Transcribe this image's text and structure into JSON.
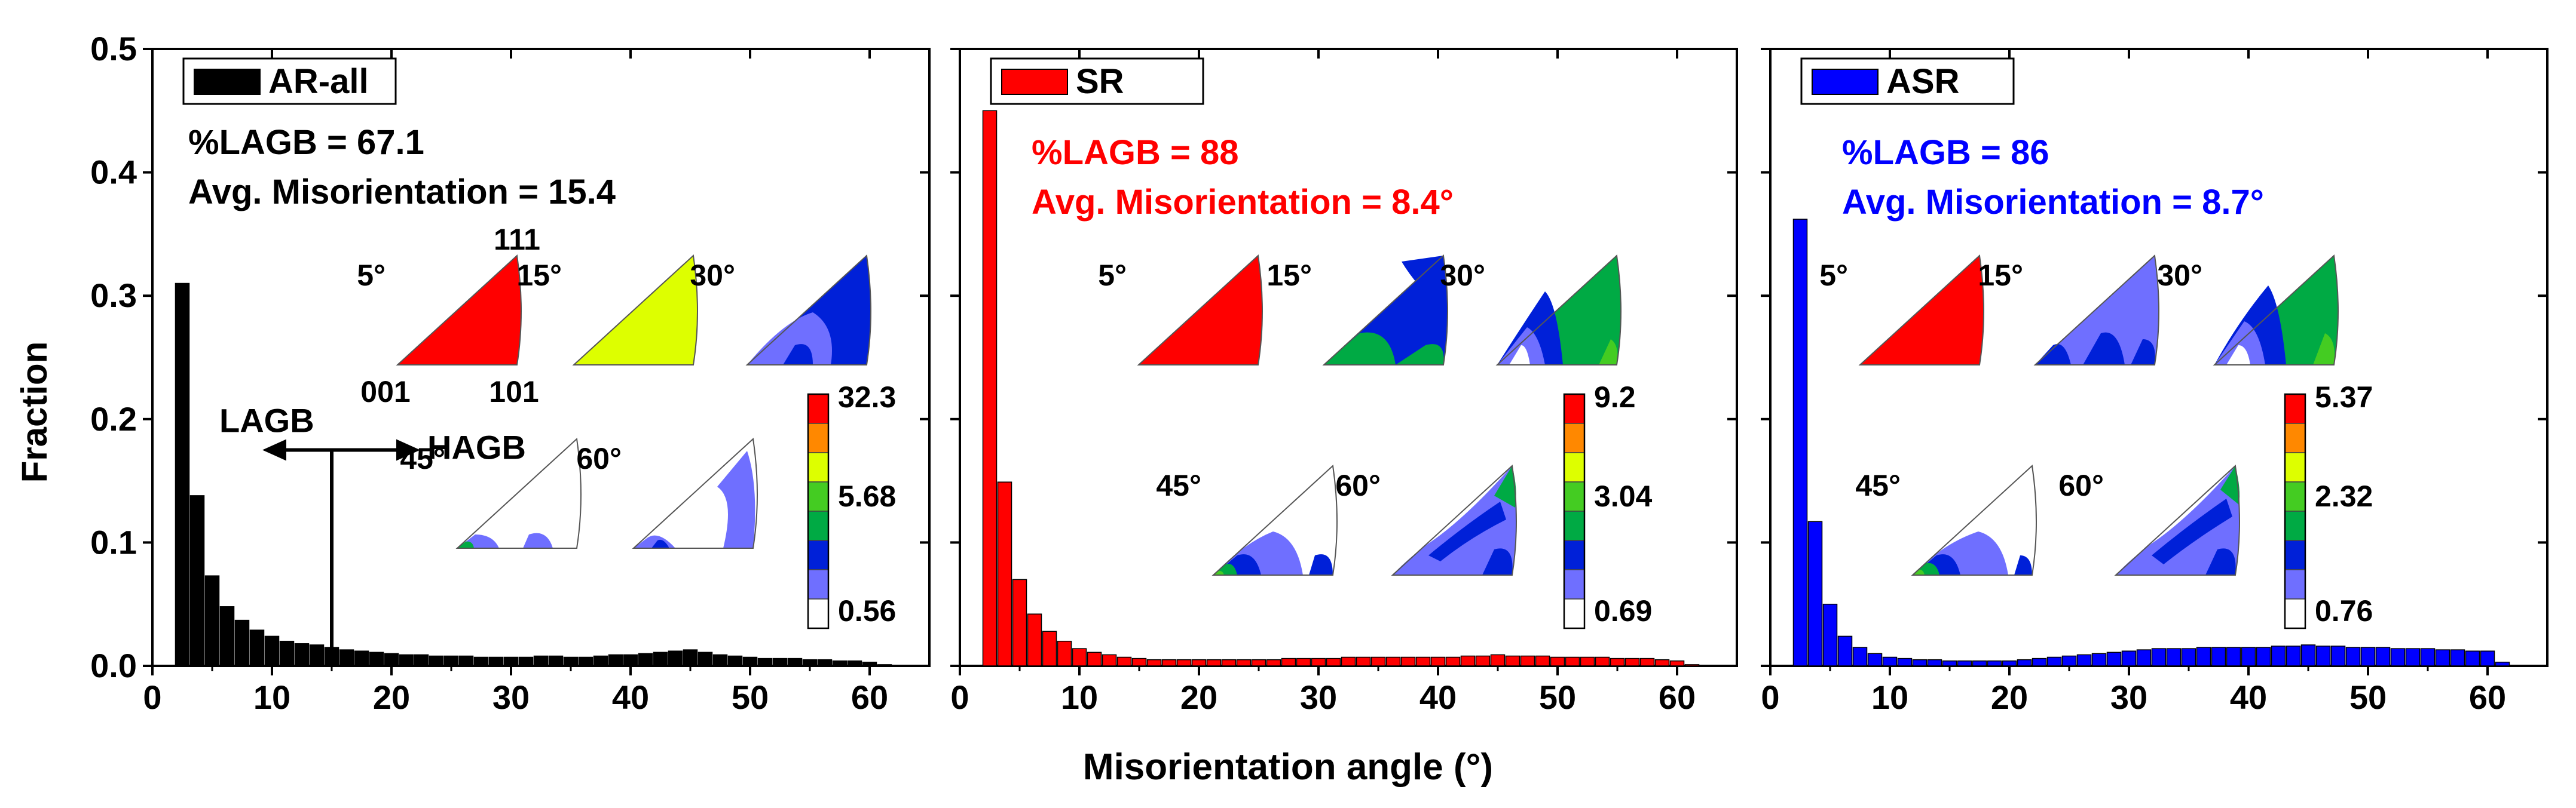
{
  "figure": {
    "ylabel": "Fraction",
    "xlabel": "Misorientation angle (°)",
    "lagb_label": "LAGB",
    "hagb_label": "HAGB"
  },
  "colors": {
    "ar": "#000000",
    "sr": "#ff0000",
    "asr": "#0000ff",
    "ipf_scale": [
      "#ffffff",
      "#6f6fff",
      "#0020d8",
      "#00aa44",
      "#44cc22",
      "#ddff00",
      "#ff8800",
      "#ff0000"
    ]
  },
  "chart_data": [
    {
      "type": "bar",
      "panel": "AR",
      "legend": "AR-all",
      "title": "",
      "xlabel": "",
      "ylabel": "Fraction",
      "xlim": [
        0,
        65
      ],
      "ylim": [
        0,
        0.5
      ],
      "xticks": [
        0,
        10,
        20,
        30,
        40,
        50,
        60
      ],
      "yticks": [
        0.0,
        0.1,
        0.2,
        0.3,
        0.4,
        0.5
      ],
      "ytick_labels": [
        "0.0",
        "0.1",
        "0.2",
        "0.3",
        "0.4",
        "0.5"
      ],
      "bin_width": 1.25,
      "x": [
        2.5,
        3.75,
        5,
        6.25,
        7.5,
        8.75,
        10,
        11.25,
        12.5,
        13.75,
        15,
        16.25,
        17.5,
        18.75,
        20,
        21.25,
        22.5,
        23.75,
        25,
        26.25,
        27.5,
        28.75,
        30,
        31.25,
        32.5,
        33.75,
        35,
        36.25,
        37.5,
        38.75,
        40,
        41.25,
        42.5,
        43.75,
        45,
        46.25,
        47.5,
        48.75,
        50,
        51.25,
        52.5,
        53.75,
        55,
        56.25,
        57.5,
        58.75,
        60,
        61.25
      ],
      "values": [
        0.31,
        0.138,
        0.073,
        0.048,
        0.037,
        0.029,
        0.024,
        0.02,
        0.018,
        0.017,
        0.015,
        0.013,
        0.012,
        0.011,
        0.01,
        0.009,
        0.009,
        0.008,
        0.008,
        0.008,
        0.007,
        0.007,
        0.007,
        0.007,
        0.008,
        0.008,
        0.007,
        0.007,
        0.008,
        0.009,
        0.009,
        0.01,
        0.011,
        0.012,
        0.013,
        0.011,
        0.009,
        0.008,
        0.007,
        0.006,
        0.006,
        0.006,
        0.005,
        0.005,
        0.004,
        0.004,
        0.003,
        0.001
      ],
      "annotations": [
        "%LAGB = 67.1",
        "Avg. Misorientation = 15.4"
      ],
      "ipf_angles": [
        "5°",
        "15°",
        "30°",
        "45°",
        "60°"
      ],
      "ipf_corners": [
        "111",
        "001",
        "101"
      ],
      "scale_labels": [
        "32.3",
        "5.68",
        "0.56"
      ],
      "divider_angle": 15
    },
    {
      "type": "bar",
      "panel": "SR",
      "legend": "SR",
      "title": "",
      "xlabel": "",
      "ylabel": "",
      "xlim": [
        0,
        65
      ],
      "ylim": [
        0,
        0.5
      ],
      "xticks": [
        0,
        10,
        20,
        30,
        40,
        50,
        60
      ],
      "bin_width": 1.25,
      "x": [
        2.5,
        3.75,
        5,
        6.25,
        7.5,
        8.75,
        10,
        11.25,
        12.5,
        13.75,
        15,
        16.25,
        17.5,
        18.75,
        20,
        21.25,
        22.5,
        23.75,
        25,
        26.25,
        27.5,
        28.75,
        30,
        31.25,
        32.5,
        33.75,
        35,
        36.25,
        37.5,
        38.75,
        40,
        41.25,
        42.5,
        43.75,
        45,
        46.25,
        47.5,
        48.75,
        50,
        51.25,
        52.5,
        53.75,
        55,
        56.25,
        57.5,
        58.75,
        60,
        61.25
      ],
      "values": [
        0.45,
        0.149,
        0.07,
        0.042,
        0.028,
        0.02,
        0.014,
        0.011,
        0.009,
        0.007,
        0.006,
        0.005,
        0.005,
        0.005,
        0.005,
        0.005,
        0.005,
        0.005,
        0.005,
        0.005,
        0.006,
        0.006,
        0.006,
        0.006,
        0.007,
        0.007,
        0.007,
        0.007,
        0.007,
        0.007,
        0.007,
        0.007,
        0.008,
        0.008,
        0.009,
        0.008,
        0.008,
        0.008,
        0.007,
        0.007,
        0.007,
        0.007,
        0.006,
        0.006,
        0.006,
        0.005,
        0.004,
        0.001
      ],
      "annotations": [
        "%LAGB = 88",
        "Avg. Misorientation = 8.4°"
      ],
      "ipf_angles": [
        "5°",
        "15°",
        "30°",
        "45°",
        "60°"
      ],
      "scale_labels": [
        "9.2",
        "3.04",
        "0.69"
      ]
    },
    {
      "type": "bar",
      "panel": "ASR",
      "legend": "ASR",
      "title": "",
      "xlabel": "",
      "ylabel": "",
      "xlim": [
        0,
        65
      ],
      "ylim": [
        0,
        0.5
      ],
      "xticks": [
        0,
        10,
        20,
        30,
        40,
        50,
        60
      ],
      "bin_width": 1.25,
      "x": [
        2.5,
        3.75,
        5,
        6.25,
        7.5,
        8.75,
        10,
        11.25,
        12.5,
        13.75,
        15,
        16.25,
        17.5,
        18.75,
        20,
        21.25,
        22.5,
        23.75,
        25,
        26.25,
        27.5,
        28.75,
        30,
        31.25,
        32.5,
        33.75,
        35,
        36.25,
        37.5,
        38.75,
        40,
        41.25,
        42.5,
        43.75,
        45,
        46.25,
        47.5,
        48.75,
        50,
        51.25,
        52.5,
        53.75,
        55,
        56.25,
        57.5,
        58.75,
        60,
        61.25
      ],
      "values": [
        0.362,
        0.117,
        0.05,
        0.024,
        0.015,
        0.01,
        0.007,
        0.006,
        0.005,
        0.005,
        0.004,
        0.004,
        0.004,
        0.004,
        0.004,
        0.005,
        0.006,
        0.007,
        0.008,
        0.009,
        0.01,
        0.011,
        0.012,
        0.013,
        0.014,
        0.014,
        0.014,
        0.015,
        0.015,
        0.015,
        0.015,
        0.015,
        0.016,
        0.016,
        0.017,
        0.016,
        0.016,
        0.015,
        0.015,
        0.015,
        0.014,
        0.014,
        0.014,
        0.013,
        0.013,
        0.012,
        0.012,
        0.003
      ],
      "annotations": [
        "%LAGB = 86",
        "Avg. Misorientation = 8.7°"
      ],
      "ipf_angles": [
        "5°",
        "15°",
        "30°",
        "45°",
        "60°"
      ],
      "scale_labels": [
        "5.37",
        "2.32",
        "0.76"
      ]
    }
  ]
}
